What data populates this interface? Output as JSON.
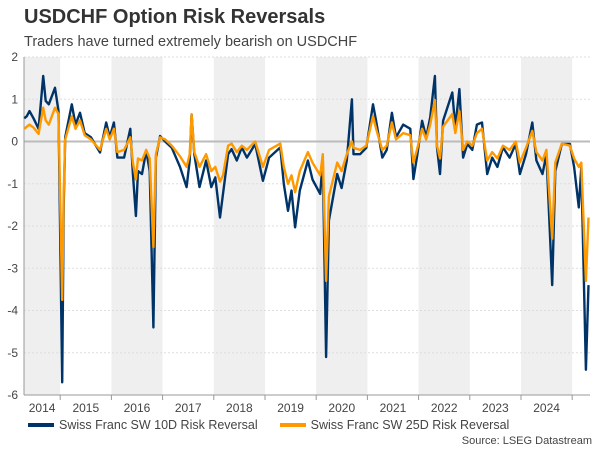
{
  "chart_data": {
    "type": "line",
    "title": "USDCHF Option Risk Reversals",
    "subtitle": "Traders have turned extremely bearish on USDCHF",
    "source": "Source: LSEG Datastream",
    "ylim": [
      -6,
      2
    ],
    "yticks": [
      2,
      1,
      0,
      -1,
      -2,
      -3,
      -4,
      -5,
      -6
    ],
    "xlim": [
      "2014-04-18",
      "2025-05-08"
    ],
    "xtick_labels": [
      "2014",
      "2015",
      "2016",
      "2017",
      "2018",
      "2019",
      "2020",
      "2021",
      "2022",
      "2023",
      "2024"
    ],
    "grid": true,
    "shaded_years": [
      "2014",
      "2016",
      "2018",
      "2020",
      "2022",
      "2024"
    ],
    "legend_position": "bottom",
    "colors": {
      "10D": "#003468",
      "25D": "#FF9900",
      "shade": "#EFEFEF",
      "zero_line": "#BBBBBB"
    },
    "x": [
      "2014-04-20",
      "2014-05-08",
      "2014-05-27",
      "2014-06-25",
      "2014-07-31",
      "2014-09-02",
      "2014-09-20",
      "2014-10-12",
      "2014-11-25",
      "2014-12-20",
      "2015-01-15",
      "2015-01-26",
      "2015-02-06",
      "2015-03-25",
      "2015-04-20",
      "2015-05-22",
      "2015-06-25",
      "2015-08-08",
      "2015-10-12",
      "2015-11-25",
      "2015-12-20",
      "2016-01-19",
      "2016-02-13",
      "2016-04-01",
      "2016-05-15",
      "2016-06-03",
      "2016-06-24",
      "2016-07-09",
      "2016-08-07",
      "2016-09-06",
      "2016-10-01",
      "2016-10-27",
      "2016-11-14",
      "2016-12-14",
      "2017-01-19",
      "2017-03-08",
      "2017-05-05",
      "2017-06-21",
      "2017-07-13",
      "2017-07-27",
      "2017-08-15",
      "2017-09-21",
      "2017-11-07",
      "2017-12-14",
      "2018-01-12",
      "2018-02-14",
      "2018-03-08",
      "2018-04-13",
      "2018-05-08",
      "2018-06-14",
      "2018-07-20",
      "2018-08-25",
      "2018-10-23",
      "2018-12-17",
      "2019-01-30",
      "2019-04-20",
      "2019-05-15",
      "2019-06-14",
      "2019-07-09",
      "2019-08-04",
      "2019-09-06",
      "2019-11-03",
      "2019-12-06",
      "2020-01-30",
      "2020-02-17",
      "2020-03-12",
      "2020-04-01",
      "2020-05-30",
      "2020-07-01",
      "2020-08-07",
      "2020-09-12",
      "2020-09-24",
      "2020-11-10",
      "2020-12-24",
      "2021-02-10",
      "2021-03-04",
      "2021-04-17",
      "2021-05-19",
      "2021-06-25",
      "2021-07-24",
      "2021-09-13",
      "2021-11-03",
      "2021-11-25",
      "2021-12-20",
      "2022-01-26",
      "2022-02-24",
      "2022-03-25",
      "2022-04-27",
      "2022-05-12",
      "2022-06-03",
      "2022-06-25",
      "2022-08-29",
      "2022-09-20",
      "2022-10-19",
      "2022-11-14",
      "2022-12-14",
      "2023-01-19",
      "2023-02-21",
      "2023-03-29",
      "2023-05-05",
      "2023-06-10",
      "2023-07-17",
      "2023-08-25",
      "2023-10-12",
      "2023-11-25",
      "2023-12-24",
      "2024-02-06",
      "2024-03-22",
      "2024-04-20",
      "2024-06-03",
      "2024-07-01",
      "2024-08-11",
      "2024-09-02",
      "2024-10-19",
      "2024-12-16",
      "2025-01-15",
      "2025-02-17",
      "2025-03-07",
      "2025-04-09",
      "2025-04-27"
    ],
    "series": [
      {
        "name": "Swiss Franc SW 10D Risk Reversal",
        "color": "#003468",
        "values": [
          0.55,
          0.6,
          0.72,
          0.55,
          0.3,
          1.55,
          0.96,
          0.88,
          1.27,
          0.72,
          -5.7,
          -1.5,
          0.1,
          0.88,
          0.4,
          0.68,
          0.2,
          0.1,
          -0.26,
          0.45,
          0.1,
          0.45,
          -0.38,
          -0.38,
          0.3,
          -0.77,
          -1.76,
          -0.7,
          -0.77,
          -0.22,
          -0.7,
          -4.4,
          -0.38,
          0.13,
          0,
          -0.15,
          -0.6,
          -1.08,
          -0.45,
          0.64,
          -0.3,
          -1.08,
          -0.45,
          -1.08,
          -0.85,
          -1.8,
          -1.24,
          -0.3,
          -0.18,
          -0.45,
          -0.14,
          -0.38,
          -0.06,
          -0.93,
          -0.38,
          -0.14,
          -1.0,
          -1.64,
          -1.16,
          -2.03,
          -1.16,
          -0.45,
          -0.9,
          -1.24,
          -0.45,
          -5.1,
          -1.87,
          -0.77,
          -1.1,
          -0.45,
          1.0,
          -0.3,
          -0.3,
          -0.15,
          0.88,
          0.49,
          -0.38,
          -0.2,
          0.68,
          0.1,
          0.4,
          0.3,
          -0.89,
          -0.38,
          0.49,
          0.1,
          0.57,
          1.55,
          -0.14,
          -0.77,
          0.49,
          1.16,
          0.33,
          1.24,
          -0.38,
          -0.06,
          -0.2,
          0.4,
          0.45,
          -0.77,
          -0.38,
          -0.6,
          -0.14,
          -0.38,
          -0.06,
          -0.77,
          -0.3,
          0.45,
          -0.45,
          -0.77,
          -0.3,
          -3.4,
          -0.7,
          -0.06,
          -0.06,
          -0.6,
          -1.56,
          -0.6,
          -5.4,
          -3.4
        ]
      },
      {
        "name": "Swiss Franc SW 25D Risk Reversal",
        "color": "#FF9900",
        "values": [
          0.3,
          0.35,
          0.4,
          0.33,
          0.18,
          0.8,
          0.5,
          0.4,
          0.8,
          0.65,
          -3.75,
          -1.2,
          0.05,
          0.6,
          0.3,
          0.5,
          0.15,
          0.05,
          -0.2,
          0.3,
          0.05,
          0.3,
          -0.25,
          -0.2,
          0.1,
          -0.5,
          -0.9,
          -0.4,
          -0.45,
          -0.2,
          -0.4,
          -2.5,
          -0.3,
          0.1,
          0.05,
          -0.1,
          -0.35,
          -0.6,
          -0.3,
          0.64,
          -0.25,
          -0.6,
          -0.3,
          -0.7,
          -0.6,
          -0.95,
          -0.8,
          -0.1,
          -0.05,
          -0.25,
          -0.1,
          -0.2,
          0,
          -0.6,
          -0.2,
          -0.05,
          -0.6,
          -1.0,
          -0.8,
          -1.2,
          -0.7,
          -0.25,
          -0.5,
          -0.8,
          -0.3,
          -3.3,
          -1.3,
          -0.5,
          -0.7,
          -0.3,
          0.0,
          -0.15,
          -0.2,
          -0.1,
          0.6,
          0.3,
          -0.2,
          -0.1,
          0.45,
          0.05,
          0.2,
          0.15,
          -0.5,
          -0.2,
          0.3,
          0.05,
          0.4,
          0.98,
          -0.1,
          -0.4,
          0.35,
          0.65,
          0.2,
          0.72,
          -0.2,
          0,
          -0.1,
          0.2,
          0.3,
          -0.45,
          -0.25,
          -0.4,
          -0.1,
          -0.2,
          0,
          -0.5,
          -0.15,
          0.25,
          -0.25,
          -0.45,
          -0.2,
          -2.3,
          -0.5,
          -0.05,
          -0.1,
          -0.4,
          -0.6,
          -0.5,
          -3.3,
          -1.8
        ]
      }
    ]
  }
}
